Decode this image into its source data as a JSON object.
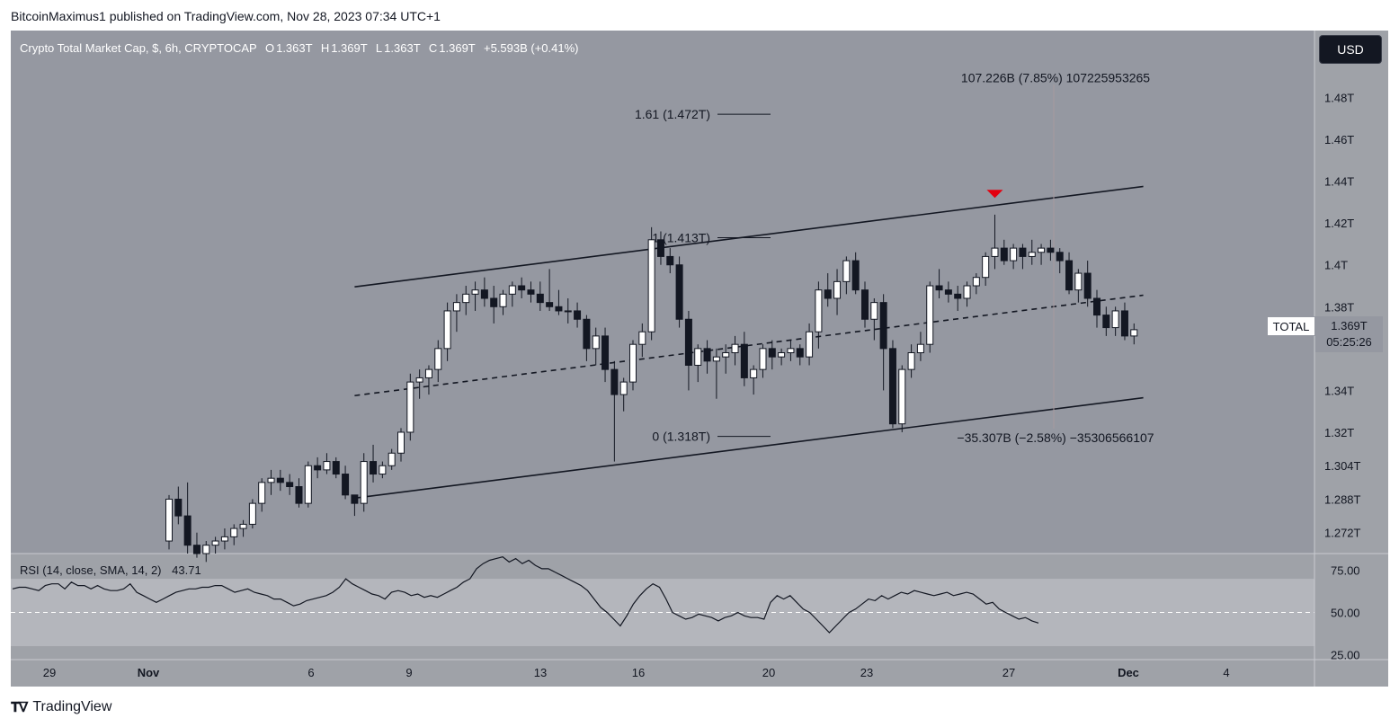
{
  "publisher": "BitcoinMaximus1 published on TradingView.com, Nov 28, 2023 07:34 UTC+1",
  "legend": {
    "symbol": "Crypto Total Market Cap, $, 6h, CRYPTOCAP",
    "o_label": "O",
    "o": "1.363T",
    "h_label": "H",
    "h": "1.369T",
    "l_label": "L",
    "l": "1.363T",
    "c_label": "C",
    "c": "1.369T",
    "change": "+5.593B (+0.41%)"
  },
  "currency_button": "USD",
  "price_tag": {
    "label": "TOTAL",
    "value": "1.369T",
    "countdown": "05:25:26"
  },
  "rsi_legend": {
    "label": "RSI (14, close, SMA, 14, 2)",
    "value": "43.71"
  },
  "footer_brand": "TradingView",
  "colors": {
    "background": "#9598a1",
    "up_candle": "#ffffff",
    "down_candle": "#131722",
    "marker": "#e3000f"
  },
  "chart_data": [
    {
      "type": "candlestick",
      "title": "Crypto Total Market Cap, $, 6h, CRYPTOCAP",
      "y_unit": "T",
      "ylim": [
        1.262,
        1.512
      ],
      "y_ticks": [
        "1.272T",
        "1.288T",
        "1.304T",
        "1.32T",
        "1.34T",
        "1.38T",
        "1.4T",
        "1.42T",
        "1.44T",
        "1.46T",
        "1.48T"
      ],
      "x_ticks": [
        "29",
        "Nov",
        "6",
        "9",
        "13",
        "16",
        "20",
        "23",
        "27",
        "Dec",
        "4"
      ],
      "candles": [
        [
          1.268,
          1.29,
          1.264,
          1.288
        ],
        [
          1.288,
          1.294,
          1.276,
          1.28
        ],
        [
          1.28,
          1.296,
          1.262,
          1.266
        ],
        [
          1.266,
          1.272,
          1.26,
          1.262
        ],
        [
          1.262,
          1.268,
          1.258,
          1.266
        ],
        [
          1.266,
          1.27,
          1.262,
          1.268
        ],
        [
          1.268,
          1.274,
          1.264,
          1.27
        ],
        [
          1.27,
          1.276,
          1.266,
          1.274
        ],
        [
          1.274,
          1.278,
          1.27,
          1.276
        ],
        [
          1.276,
          1.288,
          1.274,
          1.286
        ],
        [
          1.286,
          1.298,
          1.282,
          1.296
        ],
        [
          1.296,
          1.302,
          1.29,
          1.298
        ],
        [
          1.298,
          1.302,
          1.292,
          1.296
        ],
        [
          1.296,
          1.3,
          1.29,
          1.294
        ],
        [
          1.294,
          1.298,
          1.284,
          1.286
        ],
        [
          1.286,
          1.306,
          1.284,
          1.304
        ],
        [
          1.304,
          1.308,
          1.298,
          1.302
        ],
        [
          1.302,
          1.31,
          1.3,
          1.306
        ],
        [
          1.306,
          1.308,
          1.298,
          1.3
        ],
        [
          1.3,
          1.304,
          1.288,
          1.29
        ],
        [
          1.29,
          1.29,
          1.28,
          1.286
        ],
        [
          1.286,
          1.31,
          1.282,
          1.306
        ],
        [
          1.306,
          1.314,
          1.296,
          1.3
        ],
        [
          1.3,
          1.306,
          1.298,
          1.304
        ],
        [
          1.304,
          1.312,
          1.302,
          1.31
        ],
        [
          1.31,
          1.322,
          1.306,
          1.32
        ],
        [
          1.32,
          1.348,
          1.316,
          1.344
        ],
        [
          1.344,
          1.35,
          1.336,
          1.346
        ],
        [
          1.346,
          1.352,
          1.338,
          1.35
        ],
        [
          1.35,
          1.364,
          1.344,
          1.36
        ],
        [
          1.36,
          1.382,
          1.354,
          1.378
        ],
        [
          1.378,
          1.386,
          1.368,
          1.382
        ],
        [
          1.382,
          1.39,
          1.376,
          1.386
        ],
        [
          1.386,
          1.392,
          1.378,
          1.388
        ],
        [
          1.388,
          1.394,
          1.38,
          1.384
        ],
        [
          1.384,
          1.39,
          1.372,
          1.38
        ],
        [
          1.38,
          1.388,
          1.376,
          1.386
        ],
        [
          1.386,
          1.392,
          1.38,
          1.39
        ],
        [
          1.39,
          1.394,
          1.384,
          1.388
        ],
        [
          1.388,
          1.392,
          1.382,
          1.386
        ],
        [
          1.386,
          1.392,
          1.378,
          1.382
        ],
        [
          1.382,
          1.398,
          1.378,
          1.38
        ],
        [
          1.38,
          1.388,
          1.376,
          1.378
        ],
        [
          1.378,
          1.384,
          1.372,
          1.378
        ],
        [
          1.378,
          1.382,
          1.37,
          1.374
        ],
        [
          1.374,
          1.376,
          1.354,
          1.36
        ],
        [
          1.36,
          1.37,
          1.352,
          1.366
        ],
        [
          1.366,
          1.37,
          1.344,
          1.35
        ],
        [
          1.35,
          1.354,
          1.306,
          1.338
        ],
        [
          1.338,
          1.346,
          1.33,
          1.344
        ],
        [
          1.344,
          1.364,
          1.34,
          1.362
        ],
        [
          1.362,
          1.372,
          1.356,
          1.368
        ],
        [
          1.368,
          1.418,
          1.364,
          1.412
        ],
        [
          1.412,
          1.416,
          1.4,
          1.404
        ],
        [
          1.404,
          1.408,
          1.396,
          1.4
        ],
        [
          1.4,
          1.404,
          1.37,
          1.374
        ],
        [
          1.374,
          1.378,
          1.34,
          1.352
        ],
        [
          1.352,
          1.362,
          1.344,
          1.36
        ],
        [
          1.36,
          1.364,
          1.348,
          1.354
        ],
        [
          1.354,
          1.36,
          1.336,
          1.356
        ],
        [
          1.356,
          1.362,
          1.348,
          1.358
        ],
        [
          1.358,
          1.366,
          1.352,
          1.362
        ],
        [
          1.362,
          1.368,
          1.342,
          1.346
        ],
        [
          1.346,
          1.352,
          1.338,
          1.35
        ],
        [
          1.35,
          1.362,
          1.346,
          1.36
        ],
        [
          1.36,
          1.364,
          1.35,
          1.356
        ],
        [
          1.356,
          1.36,
          1.352,
          1.358
        ],
        [
          1.358,
          1.364,
          1.354,
          1.36
        ],
        [
          1.36,
          1.362,
          1.352,
          1.356
        ],
        [
          1.356,
          1.372,
          1.352,
          1.368
        ],
        [
          1.368,
          1.392,
          1.36,
          1.388
        ],
        [
          1.388,
          1.396,
          1.38,
          1.384
        ],
        [
          1.384,
          1.398,
          1.376,
          1.392
        ],
        [
          1.392,
          1.404,
          1.386,
          1.402
        ],
        [
          1.402,
          1.406,
          1.386,
          1.388
        ],
        [
          1.388,
          1.392,
          1.37,
          1.374
        ],
        [
          1.374,
          1.384,
          1.364,
          1.382
        ],
        [
          1.382,
          1.386,
          1.34,
          1.36
        ],
        [
          1.36,
          1.364,
          1.322,
          1.324
        ],
        [
          1.324,
          1.352,
          1.32,
          1.35
        ],
        [
          1.35,
          1.362,
          1.346,
          1.358
        ],
        [
          1.358,
          1.368,
          1.354,
          1.362
        ],
        [
          1.362,
          1.392,
          1.358,
          1.39
        ],
        [
          1.39,
          1.398,
          1.384,
          1.388
        ],
        [
          1.388,
          1.392,
          1.382,
          1.386
        ],
        [
          1.386,
          1.39,
          1.378,
          1.384
        ],
        [
          1.384,
          1.392,
          1.38,
          1.39
        ],
        [
          1.39,
          1.396,
          1.386,
          1.394
        ],
        [
          1.394,
          1.406,
          1.39,
          1.404
        ],
        [
          1.404,
          1.424,
          1.398,
          1.408
        ],
        [
          1.408,
          1.412,
          1.4,
          1.402
        ],
        [
          1.402,
          1.41,
          1.398,
          1.408
        ],
        [
          1.408,
          1.41,
          1.398,
          1.404
        ],
        [
          1.404,
          1.412,
          1.4,
          1.406
        ],
        [
          1.406,
          1.41,
          1.4,
          1.408
        ],
        [
          1.408,
          1.412,
          1.402,
          1.406
        ],
        [
          1.406,
          1.408,
          1.396,
          1.402
        ],
        [
          1.402,
          1.406,
          1.386,
          1.388
        ],
        [
          1.388,
          1.398,
          1.382,
          1.396
        ],
        [
          1.396,
          1.402,
          1.38,
          1.384
        ],
        [
          1.384,
          1.388,
          1.37,
          1.376
        ],
        [
          1.376,
          1.38,
          1.366,
          1.37
        ],
        [
          1.37,
          1.38,
          1.366,
          1.378
        ],
        [
          1.378,
          1.382,
          1.364,
          1.366
        ],
        [
          1.366,
          1.372,
          1.362,
          1.369
        ]
      ],
      "channel": {
        "upper": [
          [
            20,
            1.3895
          ],
          [
            105,
            1.4375
          ]
        ],
        "middle": [
          [
            20,
            1.3375
          ],
          [
            105,
            1.3855
          ]
        ],
        "lower": [
          [
            20,
            1.2885
          ],
          [
            105,
            1.3365
          ]
        ]
      },
      "fib_levels": [
        {
          "label": "1.61 (1.472T)",
          "value": 1.472
        },
        {
          "label": "1 (1.413T)",
          "value": 1.413
        },
        {
          "label": "0 (1.318T)",
          "value": 1.318
        }
      ],
      "measurements": [
        {
          "label": "107.226B (7.85%) 107225953265",
          "value": 1.4895
        },
        {
          "label": "−35.307B (−2.58%) −35306566107",
          "value": 1.3175
        }
      ],
      "marker": {
        "index": 89,
        "value": 1.432,
        "shape": "down-triangle"
      }
    },
    {
      "type": "line",
      "title": "RSI (14, close, SMA, 14, 2)",
      "ylim": [
        22,
        85
      ],
      "y_ticks": [
        "75.00",
        "50.00",
        "25.00"
      ],
      "band": [
        30,
        70
      ],
      "midline": 50,
      "values": [
        64,
        65,
        65,
        64,
        63,
        66,
        67,
        67,
        64,
        68,
        66,
        66,
        64,
        66,
        64,
        63,
        63,
        64,
        67,
        62,
        60,
        58,
        56,
        58,
        60,
        62,
        63,
        64,
        64,
        65,
        65,
        66,
        66,
        64,
        62,
        63,
        64,
        62,
        61,
        60,
        58,
        58,
        56,
        54,
        55,
        57,
        58,
        59,
        60,
        62,
        65,
        70,
        67,
        65,
        63,
        61,
        60,
        58,
        62,
        63,
        62,
        60,
        61,
        59,
        60,
        59,
        61,
        63,
        65,
        68,
        70,
        76,
        79,
        81,
        82,
        83,
        80,
        82,
        79,
        81,
        78,
        76,
        76,
        74,
        72,
        70,
        68,
        66,
        63,
        58,
        53,
        50,
        46,
        42,
        48,
        55,
        60,
        64,
        67,
        65,
        58,
        50,
        48,
        46,
        47,
        49,
        48,
        47,
        45,
        47,
        48,
        50,
        48,
        47,
        47,
        46,
        56,
        60,
        58,
        60,
        56,
        52,
        50,
        46,
        42,
        38,
        42,
        46,
        50,
        52,
        55,
        58,
        57,
        60,
        58,
        60,
        62,
        61,
        63,
        62,
        61,
        60,
        61,
        62,
        60,
        61,
        62,
        61,
        58,
        55,
        56,
        52,
        50,
        48,
        46,
        47,
        45,
        43.71
      ]
    }
  ]
}
